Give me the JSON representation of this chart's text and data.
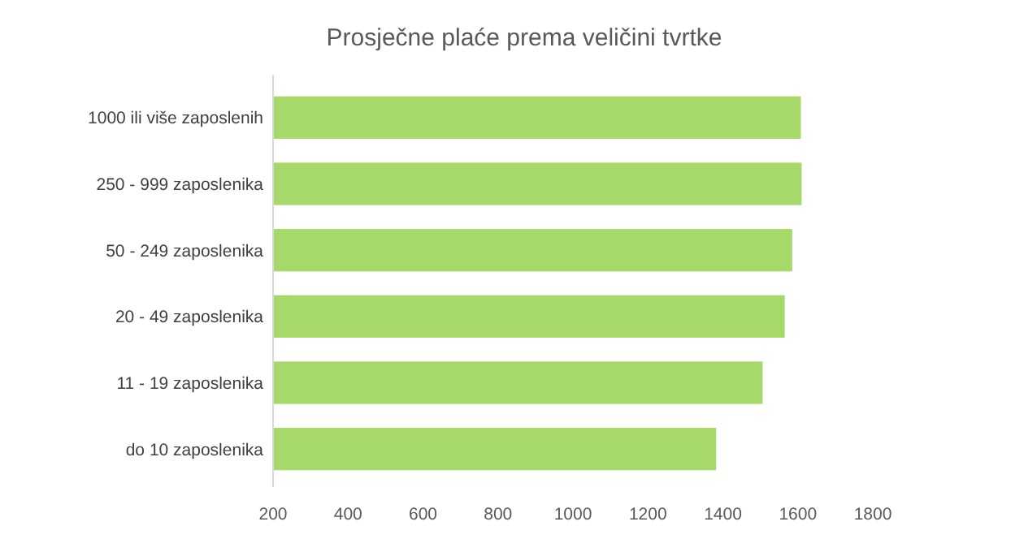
{
  "chart_data": {
    "type": "bar",
    "orientation": "horizontal",
    "title": "Prosječne plaće prema veličini tvrtke",
    "categories": [
      "1000 ili više zaposlenih",
      "250 - 999 zaposlenika",
      "50 - 249 zaposlenika",
      "20 - 49 zaposlenika",
      "11 - 19 zaposlenika",
      "do 10 zaposlenika"
    ],
    "values": [
      1608,
      1610,
      1585,
      1565,
      1506,
      1382
    ],
    "color": "#a6d96a",
    "xlim": [
      200,
      1800
    ],
    "xticks": [
      200,
      400,
      600,
      800,
      1000,
      1200,
      1400,
      1600,
      1800
    ],
    "grid": false
  }
}
